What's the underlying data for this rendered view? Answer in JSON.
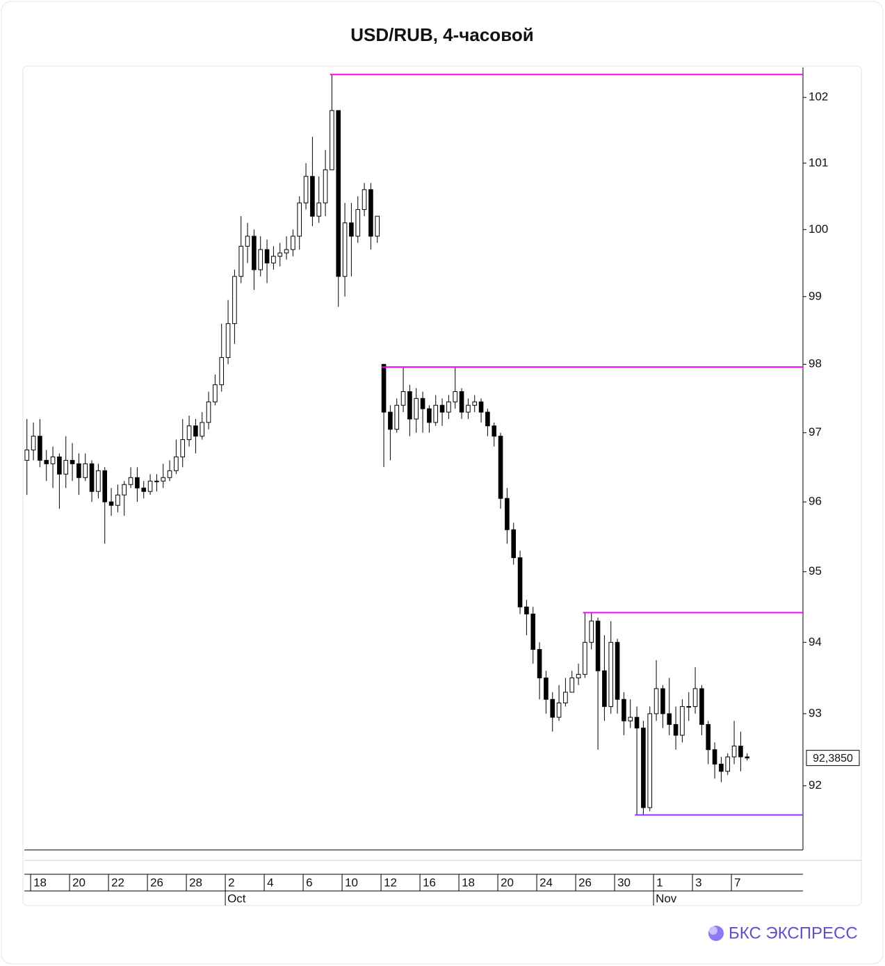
{
  "chart_data": {
    "type": "candlestick",
    "title": "USD/RUB, 4-часовой",
    "log_scale": true,
    "ylim": [
      91.12,
      102.46
    ],
    "yticks": [
      92,
      93,
      94,
      95,
      96,
      97,
      98,
      99,
      100,
      101,
      102
    ],
    "xlim": [
      -0.4,
      119.6
    ],
    "xticks": [
      {
        "value": 1,
        "label": "18"
      },
      {
        "value": 7,
        "label": "20"
      },
      {
        "value": 13,
        "label": "22"
      },
      {
        "value": 19,
        "label": "26"
      },
      {
        "value": 25,
        "label": "28"
      },
      {
        "value": 31,
        "label": "2"
      },
      {
        "value": 37,
        "label": "4"
      },
      {
        "value": 43,
        "label": "6"
      },
      {
        "value": 49,
        "label": "10"
      },
      {
        "value": 55,
        "label": "12"
      },
      {
        "value": 61,
        "label": "16"
      },
      {
        "value": 67,
        "label": "18"
      },
      {
        "value": 73,
        "label": "20"
      },
      {
        "value": 79,
        "label": "24"
      },
      {
        "value": 85,
        "label": "26"
      },
      {
        "value": 91,
        "label": "30"
      },
      {
        "value": 97,
        "label": "1"
      },
      {
        "value": 103,
        "label": "3"
      },
      {
        "value": 109,
        "label": "7"
      }
    ],
    "month_labels": [
      {
        "value": 31,
        "label": "Oct"
      },
      {
        "value": 97,
        "label": "Nov"
      }
    ],
    "up_color": "#ffffff",
    "down_color": "#000000",
    "open": [
      96.6,
      96.75,
      96.95,
      96.6,
      96.55,
      96.65,
      96.4,
      96.6,
      96.55,
      96.35,
      96.55,
      96.15,
      96.45,
      96.0,
      95.95,
      96.1,
      96.25,
      96.35,
      96.2,
      96.15,
      96.3,
      96.3,
      96.35,
      96.45,
      96.65,
      96.9,
      97.1,
      96.95,
      97.15,
      97.45,
      97.7,
      98.1,
      98.6,
      99.3,
      99.75,
      99.9,
      99.4,
      99.7,
      99.5,
      99.6,
      99.65,
      99.7,
      99.9,
      100.4,
      100.8,
      100.2,
      100.4,
      100.9,
      101.8,
      99.3,
      100.1,
      99.9,
      100.3,
      100.6,
      99.9,
      98.0,
      97.3,
      97.05,
      97.4,
      97.6,
      97.2,
      97.5,
      97.35,
      97.15,
      97.4,
      97.3,
      97.45,
      97.6,
      97.3,
      97.4,
      97.45,
      97.3,
      97.1,
      96.95,
      96.05,
      95.6,
      95.2,
      94.5,
      94.4,
      93.9,
      93.5,
      93.2,
      92.95,
      93.15,
      93.3,
      93.5,
      93.55,
      94.0,
      94.3,
      93.6,
      93.1,
      94.0,
      93.2,
      92.9,
      92.95,
      92.8,
      91.7,
      93.0,
      93.35,
      93.0,
      92.85,
      92.7,
      93.1,
      93.1,
      93.35,
      92.85,
      92.5,
      92.3,
      92.2,
      92.4,
      92.55,
      92.4
    ],
    "high": [
      97.2,
      97.15,
      97.2,
      96.75,
      96.8,
      96.7,
      96.95,
      96.85,
      96.7,
      96.7,
      96.6,
      96.55,
      96.5,
      96.2,
      96.25,
      96.3,
      96.5,
      96.5,
      96.3,
      96.4,
      96.4,
      96.55,
      96.6,
      96.9,
      97.2,
      97.25,
      97.2,
      97.3,
      97.6,
      97.85,
      98.6,
      98.95,
      99.4,
      100.2,
      100.1,
      100.0,
      99.9,
      99.85,
      99.75,
      99.8,
      99.9,
      100.0,
      100.5,
      101.0,
      101.4,
      100.8,
      101.2,
      102.35,
      101.8,
      100.4,
      100.4,
      100.5,
      100.7,
      100.7,
      100.2,
      98.0,
      97.4,
      97.5,
      97.96,
      97.7,
      97.65,
      97.6,
      97.4,
      97.55,
      97.5,
      97.55,
      97.96,
      97.65,
      97.5,
      97.55,
      97.5,
      97.35,
      97.15,
      97.0,
      96.2,
      95.7,
      95.3,
      94.6,
      94.5,
      94.0,
      93.6,
      93.3,
      93.4,
      93.5,
      93.6,
      93.7,
      94.42,
      94.42,
      94.35,
      94.1,
      94.3,
      94.05,
      93.3,
      93.2,
      93.1,
      92.9,
      93.1,
      93.75,
      93.4,
      93.5,
      93.1,
      93.2,
      93.3,
      93.65,
      93.4,
      92.9,
      92.6,
      92.4,
      92.45,
      92.9,
      92.75,
      92.45
    ],
    "low": [
      96.1,
      96.6,
      96.5,
      96.3,
      96.2,
      95.9,
      96.2,
      96.3,
      96.1,
      96.3,
      96.0,
      96.05,
      95.4,
      95.8,
      95.85,
      95.8,
      96.2,
      96.0,
      96.05,
      96.1,
      96.15,
      96.2,
      96.3,
      96.4,
      96.5,
      96.8,
      96.7,
      96.9,
      97.05,
      97.4,
      97.6,
      98.0,
      98.3,
      99.2,
      99.5,
      99.1,
      99.3,
      99.2,
      99.4,
      99.45,
      99.55,
      99.6,
      99.7,
      100.3,
      100.05,
      100.1,
      100.2,
      100.9,
      98.85,
      99.0,
      99.3,
      99.8,
      100.2,
      99.7,
      99.8,
      96.5,
      96.6,
      97.0,
      97.3,
      96.95,
      97.0,
      97.0,
      97.0,
      97.1,
      97.1,
      97.2,
      97.35,
      97.2,
      97.2,
      97.3,
      97.15,
      96.95,
      96.8,
      95.9,
      95.4,
      95.1,
      94.4,
      94.1,
      93.7,
      93.2,
      93.0,
      92.75,
      92.9,
      93.1,
      93.3,
      93.4,
      93.5,
      93.9,
      92.5,
      92.9,
      93.0,
      93.0,
      92.7,
      92.8,
      91.6,
      91.6,
      91.65,
      92.9,
      92.8,
      92.7,
      92.5,
      92.6,
      92.9,
      93.0,
      92.7,
      92.3,
      92.1,
      92.05,
      92.15,
      92.3,
      92.2,
      92.35
    ],
    "close": [
      96.75,
      96.95,
      96.6,
      96.55,
      96.65,
      96.4,
      96.6,
      96.55,
      96.35,
      96.55,
      96.15,
      96.45,
      96.0,
      95.95,
      96.1,
      96.25,
      96.35,
      96.2,
      96.15,
      96.3,
      96.3,
      96.35,
      96.45,
      96.65,
      96.9,
      97.1,
      96.95,
      97.15,
      97.45,
      97.7,
      98.1,
      98.6,
      99.3,
      99.75,
      99.9,
      99.4,
      99.7,
      99.5,
      99.6,
      99.65,
      99.7,
      99.9,
      100.4,
      100.8,
      100.2,
      100.4,
      100.9,
      101.8,
      99.3,
      100.1,
      99.9,
      100.3,
      100.6,
      99.9,
      100.2,
      97.3,
      97.05,
      97.4,
      97.6,
      97.2,
      97.5,
      97.35,
      97.15,
      97.4,
      97.3,
      97.45,
      97.6,
      97.3,
      97.4,
      97.45,
      97.3,
      97.1,
      96.95,
      96.05,
      95.6,
      95.2,
      94.5,
      94.4,
      93.9,
      93.5,
      93.2,
      92.95,
      93.15,
      93.3,
      93.5,
      93.55,
      94.0,
      94.3,
      93.6,
      93.1,
      94.0,
      93.2,
      92.9,
      92.95,
      92.8,
      91.7,
      93.0,
      93.35,
      93.0,
      92.85,
      92.7,
      93.1,
      93.1,
      93.35,
      92.85,
      92.5,
      92.3,
      92.2,
      92.4,
      92.55,
      92.4,
      92.385
    ],
    "levels": [
      {
        "value": 102.35,
        "color": "#ff00ff",
        "from": 47
      },
      {
        "value": 97.96,
        "color": "#ff00ff",
        "from": 55
      },
      {
        "value": 94.42,
        "color": "#ff00ff",
        "from": 86
      },
      {
        "value": 91.6,
        "color": "#9933ff",
        "from": 94
      }
    ],
    "last_price": {
      "value": 92.385,
      "label": "92,3850"
    }
  },
  "brand": "БКС ЭКСПРЕСС"
}
